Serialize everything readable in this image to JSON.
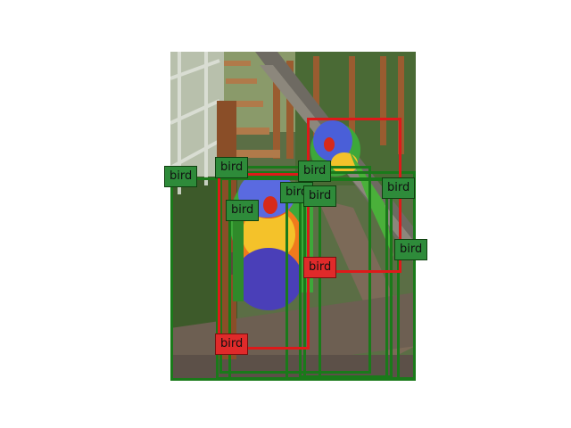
{
  "image": {
    "description_icon": "photo-icon",
    "colors": {
      "sky": "#c9d2c3",
      "foliage_dark": "#2f4a22",
      "foliage_mid": "#4f7a3a",
      "fence": "#8b5a33",
      "railing": "#7a6a5a",
      "bird_blue": "#4a5fd8",
      "bird_orange": "#f07a1c",
      "bird_green": "#3da83a"
    }
  },
  "detections": {
    "colors": {
      "green": "#1a7a1a",
      "red": "#dd1a1a"
    },
    "labels": {
      "g1": "bird",
      "g2": "bird",
      "g3": "bird",
      "g4": "bird",
      "g5": "bird",
      "g6": "bird",
      "g7": "bird",
      "g8": "bird",
      "g9": "bird",
      "r1": "bird",
      "r2": "bird"
    }
  }
}
